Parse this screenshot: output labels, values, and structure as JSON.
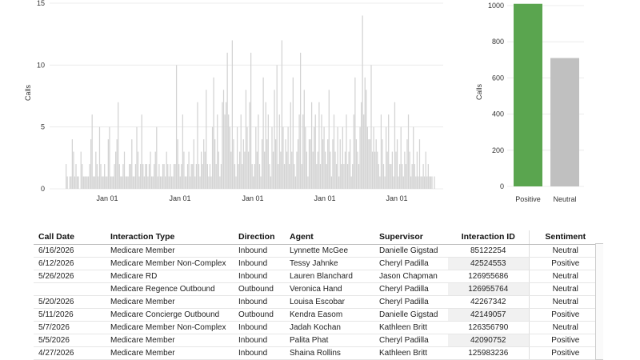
{
  "chart_data": [
    {
      "type": "bar",
      "ylabel": "Calls",
      "xlabel": "",
      "ylim": [
        0,
        15
      ],
      "yticks": [
        "0",
        "5",
        "10",
        "15"
      ],
      "xtick_labels": [
        "Jan 01",
        "Jan 01",
        "Jan 01",
        "Jan 01",
        "Jan 01"
      ],
      "grid": true,
      "values": [
        2,
        1,
        0,
        1,
        1,
        4,
        3,
        1,
        2,
        1,
        1,
        0,
        3,
        2,
        1,
        1,
        1,
        1,
        1,
        2,
        4,
        6,
        1,
        1,
        3,
        2,
        1,
        5,
        2,
        1,
        1,
        2,
        1,
        1,
        4,
        5,
        1,
        1,
        1,
        2,
        3,
        4,
        7,
        2,
        1,
        1,
        2,
        3,
        1,
        1,
        1,
        2,
        2,
        4,
        1,
        1,
        2,
        5,
        3,
        1,
        2,
        6,
        2,
        1,
        2,
        2,
        1,
        2,
        3,
        1,
        1,
        2,
        3,
        5,
        1,
        2,
        1,
        1,
        2,
        2,
        1,
        3,
        2,
        1,
        2,
        1,
        1,
        2,
        2,
        10,
        4,
        2,
        1,
        2,
        6,
        3,
        1,
        1,
        2,
        3,
        1,
        2,
        2,
        4,
        1,
        2,
        7,
        2,
        1,
        3,
        2,
        4,
        3,
        8,
        2,
        1,
        2,
        1,
        5,
        9,
        4,
        2,
        6,
        3,
        1,
        2,
        7,
        8,
        6,
        7,
        11,
        6,
        5,
        3,
        12,
        4,
        2,
        1,
        5,
        2,
        3,
        6,
        2,
        4,
        3,
        8,
        5,
        3,
        7,
        11,
        2,
        1,
        2,
        5,
        3,
        6,
        2,
        1,
        4,
        9,
        3,
        7,
        4,
        6,
        2,
        1,
        5,
        3,
        8,
        4,
        10,
        2,
        6,
        3,
        12,
        5,
        2,
        4,
        3,
        5,
        2,
        7,
        3,
        9,
        2,
        1,
        3,
        4,
        6,
        11,
        2,
        6,
        8,
        5,
        3,
        1,
        4,
        4,
        7,
        3,
        5,
        6,
        2,
        3,
        7,
        2,
        6,
        4,
        5,
        3,
        2,
        4,
        8,
        3,
        1,
        4,
        6,
        3,
        2,
        5,
        1,
        4,
        2,
        5,
        2,
        3,
        6,
        2,
        3,
        4,
        1,
        2,
        6,
        9,
        4,
        3,
        2,
        5,
        7,
        14,
        6,
        9,
        8,
        5,
        4,
        4,
        10,
        3,
        5,
        3,
        4,
        3,
        2,
        1,
        6,
        4,
        2,
        1,
        5,
        3,
        6,
        2,
        2,
        3,
        1,
        7,
        3,
        4,
        1,
        2,
        5,
        2,
        1,
        3,
        2,
        4,
        6,
        3,
        1,
        2,
        5,
        2,
        1,
        3,
        1,
        4,
        1,
        1,
        2,
        1,
        3,
        1,
        2,
        1,
        1,
        1,
        0,
        1
      ]
    },
    {
      "type": "bar",
      "ylabel": "Calls",
      "ylim": [
        0,
        1000
      ],
      "yticks": [
        "0",
        "200",
        "400",
        "600",
        "800",
        "1000"
      ],
      "categories": [
        "Positive",
        "Neutral"
      ],
      "values": [
        1010,
        710
      ],
      "colors": [
        "#5aa54f",
        "#c0c0c0"
      ]
    }
  ],
  "table": {
    "columns": [
      "Call Date",
      "Interaction Type",
      "Direction",
      "Agent",
      "Supervisor",
      "Interaction ID",
      "Sentiment"
    ],
    "rows": [
      [
        "6/16/2026",
        "Medicare Member",
        "Inbound",
        "Lynnette McGee",
        "Danielle Gigstad",
        "85122254",
        "Neutral"
      ],
      [
        "6/12/2026",
        "Medicare Member Non-Complex",
        "Inbound",
        "Tessy Jahnke",
        "Cheryl Padilla",
        "42524553",
        "Positive"
      ],
      [
        "5/26/2026",
        "Medicare RD",
        "Inbound",
        "Lauren Blanchard",
        "Jason Chapman",
        "126955686",
        "Neutral"
      ],
      [
        "",
        "Medicare Regence Outbound",
        "Outbound",
        "Veronica Hand",
        "Cheryl Padilla",
        "126955764",
        "Neutral"
      ],
      [
        "5/20/2026",
        "Medicare Member",
        "Inbound",
        "Louisa Escobar",
        "Cheryl Padilla",
        "42267342",
        "Neutral"
      ],
      [
        "5/11/2026",
        "Medicare Concierge Outbound",
        "Outbound",
        "Kendra Easom",
        "Danielle Gigstad",
        "42149057",
        "Positive"
      ],
      [
        "5/7/2026",
        "Medicare Member Non-Complex",
        "Inbound",
        "Jadah Kochan",
        "Kathleen Britt",
        "126356790",
        "Neutral"
      ],
      [
        "5/5/2026",
        "Medicare Member",
        "Inbound",
        "Palita Phat",
        "Cheryl Padilla",
        "42090752",
        "Positive"
      ],
      [
        "4/27/2026",
        "Medicare Member",
        "Inbound",
        "Shaina Rollins",
        "Kathleen Britt",
        "125983236",
        "Positive"
      ]
    ]
  }
}
